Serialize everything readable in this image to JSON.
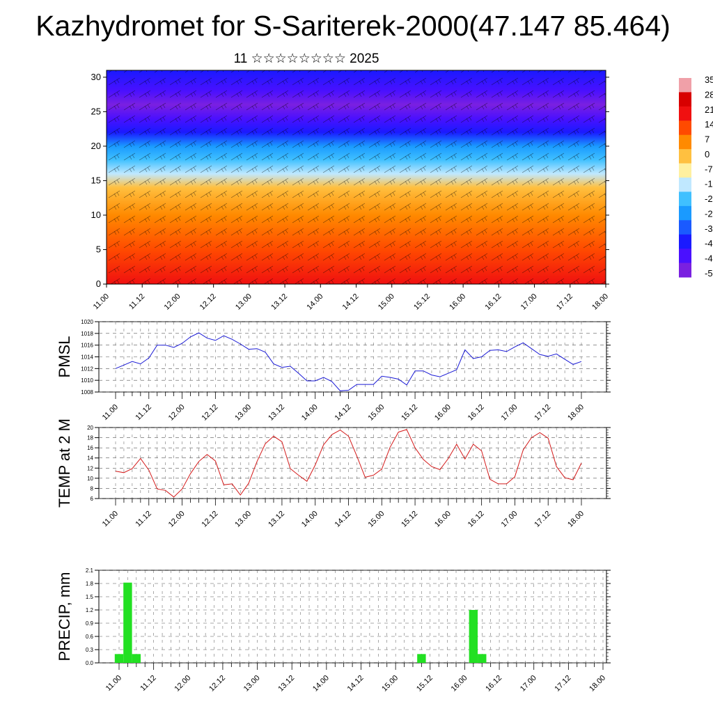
{
  "title": "Kazhydromet for S-Sariterek-2000(47.147 85.464)",
  "subtitle": "11 ☆☆☆☆☆☆☆☆ 2025",
  "colors": {
    "pmsl_line": "#1a1ad6",
    "temp_line": "#d41a1a",
    "precip_bar": "#22e022",
    "axis": "#000000"
  },
  "chart_data": [
    {
      "type": "heatmap",
      "name": "vertical-cross-section",
      "x_tick_labels": [
        "11.00",
        "11.12",
        "12.00",
        "12.12",
        "13.00",
        "13.12",
        "14.00",
        "14.12",
        "15.00",
        "15.12",
        "16.00",
        "16.12",
        "17.00",
        "17.12",
        "18.00"
      ],
      "y_tick_labels": [
        "0",
        "5",
        "10",
        "15",
        "20",
        "25",
        "30"
      ],
      "ylim": [
        0,
        31
      ],
      "colorbar_labels": [
        "35",
        "28",
        "21",
        "14",
        "7",
        "0",
        "-7",
        "-1",
        "-2",
        "-2",
        "-3",
        "-4",
        "-4",
        "-5"
      ],
      "colorbar_colors": [
        "#f0a0a8",
        "#d80000",
        "#f01010",
        "#ff4a00",
        "#ff8a00",
        "#ffc040",
        "#fff0a0",
        "#c0e8ff",
        "#40c0ff",
        "#1a9aff",
        "#1a5aff",
        "#1a1aff",
        "#4a10ff",
        "#7a20e0"
      ],
      "temperature_profile": [
        {
          "height": 0,
          "value": 21
        },
        {
          "height": 5,
          "value": 12
        },
        {
          "height": 10,
          "value": 5
        },
        {
          "height": 14,
          "value": -2
        },
        {
          "height": 16,
          "value": -12
        },
        {
          "height": 18,
          "value": -22
        },
        {
          "height": 20,
          "value": -30
        },
        {
          "height": 22,
          "value": -38
        },
        {
          "height": 24,
          "value": -46
        },
        {
          "height": 26,
          "value": -52
        },
        {
          "height": 28,
          "value": -48
        },
        {
          "height": 31,
          "value": -44
        }
      ],
      "grid": false
    },
    {
      "type": "line",
      "name": "pmsl",
      "ylabel": "PMSL",
      "x_tick_labels": [
        "11.00",
        "11.12",
        "12.00",
        "12.12",
        "13.00",
        "13.12",
        "14.00",
        "14.12",
        "15.00",
        "15.12",
        "16.00",
        "16.12",
        "17.00",
        "17.12",
        "18.00"
      ],
      "y_tick_labels": [
        "1008",
        "1010",
        "1012",
        "1014",
        "1016",
        "1018",
        "1020"
      ],
      "ylim": [
        1008,
        1020
      ],
      "x_hours": [
        0,
        3,
        6,
        9,
        12,
        15,
        18,
        21,
        24,
        27,
        30,
        33,
        36,
        39,
        42,
        45,
        48,
        51,
        54,
        57,
        60,
        63,
        66,
        69,
        72,
        75,
        78,
        81,
        84,
        87,
        90,
        93,
        96,
        99,
        102,
        105,
        108,
        111,
        114,
        117,
        120,
        123,
        126,
        129,
        132,
        135,
        138,
        141,
        144,
        147,
        150,
        153,
        156,
        159,
        162,
        165,
        168
      ],
      "values": [
        1012.0,
        1012.6,
        1013.2,
        1012.8,
        1013.8,
        1016.0,
        1016.0,
        1015.6,
        1016.3,
        1017.4,
        1018.1,
        1017.2,
        1016.8,
        1017.6,
        1017.0,
        1016.2,
        1015.3,
        1015.4,
        1014.8,
        1012.8,
        1012.2,
        1012.4,
        1011.2,
        1009.9,
        1009.9,
        1010.5,
        1009.8,
        1008.2,
        1008.3,
        1009.3,
        1009.3,
        1009.3,
        1010.7,
        1010.5,
        1010.2,
        1009.2,
        1011.6,
        1011.6,
        1010.9,
        1010.6,
        1011.2,
        1011.8,
        1015.2,
        1013.7,
        1014.0,
        1015.1,
        1015.2,
        1014.9,
        1015.7,
        1016.4,
        1015.4,
        1014.4,
        1014.1,
        1014.5,
        1013.6,
        1012.7,
        1013.2
      ],
      "grid": true
    },
    {
      "type": "line",
      "name": "temp-2m",
      "ylabel": "TEMP at 2 M",
      "x_tick_labels": [
        "11.00",
        "11.12",
        "12.00",
        "12.12",
        "13.00",
        "13.12",
        "14.00",
        "14.12",
        "15.00",
        "15.12",
        "16.00",
        "16.12",
        "17.00",
        "17.12",
        "18.00"
      ],
      "y_tick_labels": [
        "6",
        "8",
        "10",
        "12",
        "14",
        "16",
        "18",
        "20"
      ],
      "ylim": [
        6,
        20
      ],
      "x_hours": [
        0,
        3,
        6,
        9,
        12,
        15,
        18,
        21,
        24,
        27,
        30,
        33,
        36,
        39,
        42,
        45,
        48,
        51,
        54,
        57,
        60,
        63,
        66,
        69,
        72,
        75,
        78,
        81,
        84,
        87,
        90,
        93,
        96,
        99,
        102,
        105,
        108,
        111,
        114,
        117,
        120,
        123,
        126,
        129,
        132,
        135,
        138,
        141,
        144,
        147,
        150,
        153,
        156,
        159,
        162,
        165,
        168
      ],
      "values": [
        11.4,
        11.1,
        11.9,
        13.9,
        11.6,
        7.9,
        7.6,
        6.3,
        7.9,
        10.9,
        13.3,
        14.7,
        13.4,
        8.7,
        8.9,
        6.7,
        9.0,
        13.3,
        16.8,
        18.3,
        17.2,
        11.9,
        10.6,
        9.4,
        12.6,
        16.6,
        18.6,
        19.5,
        18.3,
        14.4,
        10.2,
        10.6,
        11.8,
        16.1,
        19.1,
        19.6,
        16.0,
        13.7,
        12.3,
        11.7,
        13.9,
        16.7,
        13.8,
        16.7,
        15.4,
        9.8,
        8.9,
        8.9,
        10.3,
        15.6,
        18.0,
        19.0,
        17.9,
        12.3,
        10.1,
        9.7,
        13.0
      ],
      "grid": true
    },
    {
      "type": "bar",
      "name": "precip",
      "ylabel": "PRECIP, mm",
      "x_tick_labels": [
        "11.00",
        "11.12",
        "12.00",
        "12.12",
        "13.00",
        "13.12",
        "14.00",
        "14.12",
        "15.00",
        "15.12",
        "16.00",
        "16.12",
        "17.00",
        "17.12",
        "18.00"
      ],
      "y_tick_labels": [
        "0.0",
        "0.3",
        "0.6",
        "0.9",
        "1.2",
        "1.5",
        "1.8",
        "2.1"
      ],
      "ylim": [
        0,
        2.1
      ],
      "bars": [
        {
          "hour": 0,
          "value": 0.2
        },
        {
          "hour": 3,
          "value": 1.82
        },
        {
          "hour": 6,
          "value": 0.2
        },
        {
          "hour": 105,
          "value": 0.2
        },
        {
          "hour": 123,
          "value": 1.2
        },
        {
          "hour": 126,
          "value": 0.2
        }
      ],
      "grid": true
    }
  ]
}
